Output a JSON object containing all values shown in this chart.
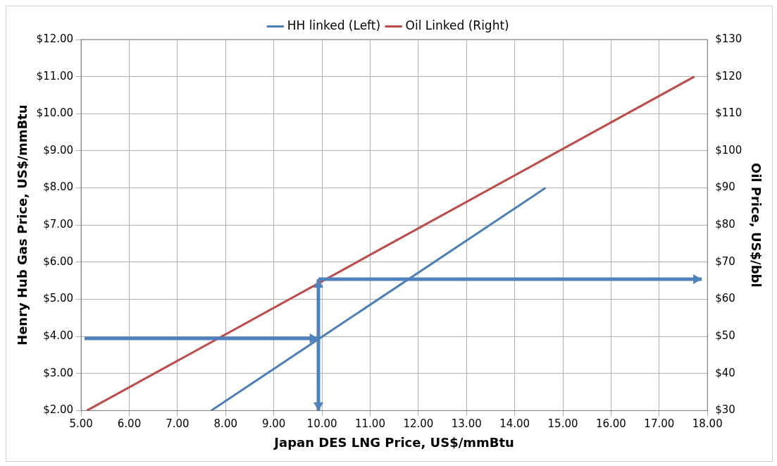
{
  "chart_data": {
    "type": "line",
    "xlabel": "Japan DES LNG Price, US$/mmBtu",
    "ylabel": "Henry Hub Gas Price, US$/mmBtu",
    "y2label": "Oil Price, US$/bbl",
    "series": [
      {
        "name": "HH linked (Left)",
        "color": "#4a7ebb",
        "x": [
          7.7,
          14.64
        ],
        "values": [
          2,
          8
        ]
      },
      {
        "name": "Oil Linked (Right)",
        "color": "#be4b48",
        "x": [
          5.12,
          17.73
        ],
        "values": [
          30,
          120
        ],
        "axis": "y2"
      }
    ],
    "xlim": [
      5,
      18
    ],
    "xticks": [
      {
        "value": 5,
        "label": "5.00"
      },
      {
        "value": 6,
        "label": "6.00"
      },
      {
        "value": 7,
        "label": "7.00"
      },
      {
        "value": 8,
        "label": "8.00"
      },
      {
        "value": 9,
        "label": "9.00"
      },
      {
        "value": 10,
        "label": "10.00"
      },
      {
        "value": 11,
        "label": "11.00"
      },
      {
        "value": 12,
        "label": "12.00"
      },
      {
        "value": 13,
        "label": "13.00"
      },
      {
        "value": 14,
        "label": "14.00"
      },
      {
        "value": 15,
        "label": "15.00"
      },
      {
        "value": 16,
        "label": "16.00"
      },
      {
        "value": 17,
        "label": "17.00"
      },
      {
        "value": 18,
        "label": "18.00"
      }
    ],
    "ylim": [
      2,
      12
    ],
    "yticks": [
      {
        "value": 2,
        "label": "$2.00"
      },
      {
        "value": 3,
        "label": "$3.00"
      },
      {
        "value": 4,
        "label": "$4.00"
      },
      {
        "value": 5,
        "label": "$5.00"
      },
      {
        "value": 6,
        "label": "$6.00"
      },
      {
        "value": 7,
        "label": "$7.00"
      },
      {
        "value": 8,
        "label": "$8.00"
      },
      {
        "value": 9,
        "label": "$9.00"
      },
      {
        "value": 10,
        "label": "$10.00"
      },
      {
        "value": 11,
        "label": "$11.00"
      },
      {
        "value": 12,
        "label": "$12.00"
      }
    ],
    "y2lim": [
      30,
      130
    ],
    "y2ticks": [
      {
        "value": 30,
        "label": "$30"
      },
      {
        "value": 40,
        "label": "$40"
      },
      {
        "value": 50,
        "label": "$50"
      },
      {
        "value": 60,
        "label": "$60"
      },
      {
        "value": 70,
        "label": "$70"
      },
      {
        "value": 80,
        "label": "$80"
      },
      {
        "value": 90,
        "label": "$90"
      },
      {
        "value": 100,
        "label": "$100"
      },
      {
        "value": 110,
        "label": "$110"
      },
      {
        "value": 120,
        "label": "$120"
      },
      {
        "value": 130,
        "label": "$130"
      }
    ],
    "grid": true,
    "legend": "top",
    "marker": "none",
    "line_style": "solid"
  }
}
